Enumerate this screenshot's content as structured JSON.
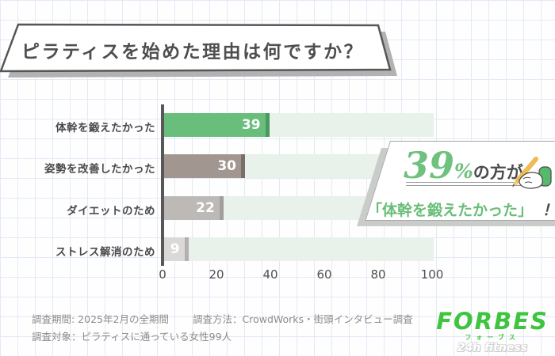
{
  "title": {
    "text": "ピラティスを始めた理由は何ですか？"
  },
  "chart_data": {
    "type": "bar",
    "orientation": "horizontal",
    "title": "ピラティスを始めた理由は何ですか？",
    "categories": [
      "体幹を鍛えたかった",
      "姿勢を改善したかった",
      "ダイエットのため",
      "ストレス解消のため"
    ],
    "values": [
      39,
      30,
      22,
      9
    ],
    "value_labels": [
      "39",
      "30",
      "22",
      "9"
    ],
    "xlim": [
      0,
      100
    ],
    "xticks": [
      0,
      20,
      40,
      60,
      80,
      100
    ],
    "legend": "none",
    "grid": "off",
    "bar_colors": [
      "#6abe7b",
      "#a29691",
      "#bcb9b6",
      "#dbd9d7"
    ],
    "bar_cap_colors": [
      "#4a9a5f",
      "#7a6e67",
      "#a19e9b",
      "#b3b1af"
    ],
    "track_color": "#e9f2ea",
    "axis_color": "#58585a",
    "value_text_color": "#ffffff"
  },
  "callout": {
    "percent": "39",
    "percent_sign": "%",
    "suffix": "の方が",
    "quote": "「体幹を鍛えたかった」",
    "exclamation": "！",
    "accent_color": "#6fc17e",
    "quote_color": "#68bd77"
  },
  "footer": {
    "period": "調査期間: 2025年2月の全期間",
    "method": "調査方法：CrowdWorks・街頭インタビュー調査",
    "target": "調査対象：ピラティスに通っている女性99人"
  },
  "logo": {
    "name": "FORBES",
    "kana": "フォーブス",
    "tagline": "24h fitness",
    "color": "#3ec43e"
  },
  "icons": {
    "hand_pencil": "hand-writing-with-pencil-icon"
  }
}
